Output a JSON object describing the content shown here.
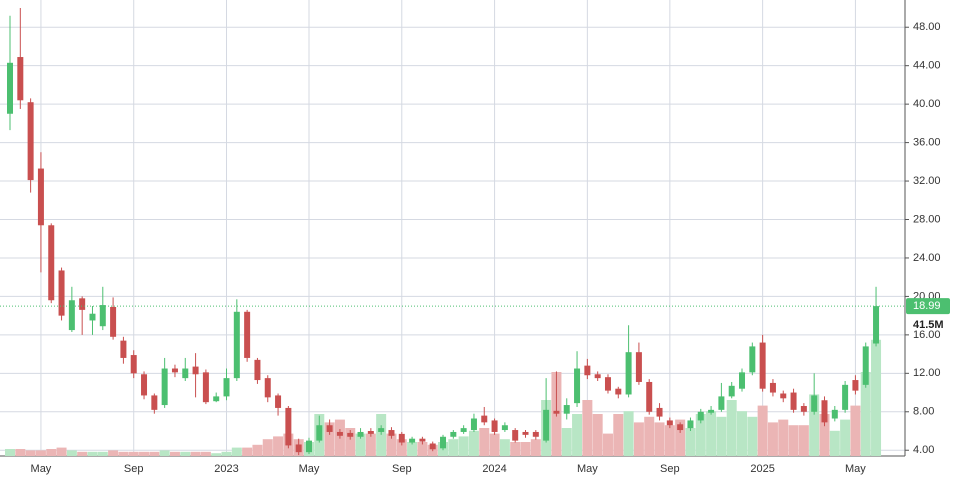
{
  "chart_data": {
    "type": "candlestick",
    "categories": [
      null,
      null,
      null,
      "May",
      null,
      null,
      null,
      null,
      null,
      null,
      null,
      null,
      "Sep",
      null,
      null,
      null,
      null,
      null,
      null,
      null,
      null,
      "2023",
      null,
      null,
      null,
      null,
      null,
      null,
      null,
      "May",
      null,
      null,
      null,
      null,
      null,
      null,
      null,
      null,
      "Sep",
      null,
      null,
      null,
      null,
      null,
      null,
      null,
      null,
      "2024",
      null,
      null,
      null,
      null,
      null,
      null,
      null,
      null,
      "May",
      null,
      null,
      null,
      null,
      null,
      null,
      null,
      "Sep",
      null,
      null,
      null,
      null,
      null,
      null,
      null,
      null,
      "2025",
      null,
      null,
      null,
      null,
      null,
      null,
      null,
      null,
      "May",
      null,
      null
    ],
    "open": [
      39,
      44.9,
      40.2,
      33.3,
      27.4,
      22.7,
      16.5,
      19.8,
      17.5,
      16.9,
      18.9,
      15.4,
      13.9,
      11.9,
      9.7,
      8.7,
      12.5,
      11.5,
      12.7,
      12.1,
      9.1,
      9.6,
      11.5,
      18.4,
      13.4,
      11.5,
      9.7,
      8.4,
      4.6,
      3.8,
      5.0,
      6.6,
      5.9,
      5.8,
      5.4,
      6.0,
      5.9,
      6.1,
      5.7,
      4.8,
      5.2,
      4.7,
      4.2,
      5.4,
      5.9,
      6.1,
      7.6,
      7.1,
      6.1,
      6.1,
      5.9,
      5.9,
      5.0,
      8.1,
      7.8,
      8.9,
      12.8,
      11.9,
      11.6,
      10.4,
      9.8,
      14.2,
      11.1,
      8.4,
      7.1,
      6.7,
      6.3,
      7.1,
      7.9,
      8.2,
      9.6,
      10.4,
      12.1,
      15.2,
      11.0,
      9.9,
      10.0,
      8.6,
      8.0,
      9.2,
      7.3,
      8.2,
      11.3,
      10.8,
      15.1
    ],
    "high": [
      49.2,
      50,
      40.6,
      35,
      27.6,
      23,
      21,
      20,
      19,
      21,
      19.9,
      15.8,
      14.4,
      12.2,
      9.9,
      13.6,
      12.9,
      13.6,
      14.1,
      12.4,
      10,
      12.5,
      19.7,
      18.6,
      13.6,
      11.8,
      9.9,
      8.6,
      5.2,
      5.3,
      7.6,
      7.2,
      6.2,
      6.1,
      6.3,
      6.3,
      6.6,
      6.4,
      5.9,
      5.4,
      5.4,
      4.9,
      5.6,
      6.1,
      6.6,
      7.8,
      8.5,
      7.3,
      6.9,
      6.3,
      6.1,
      6.1,
      11.5,
      12.2,
      9.4,
      14.3,
      13.5,
      12.2,
      11.9,
      10.6,
      17,
      15.2,
      11.4,
      8.9,
      7.4,
      6.9,
      7.4,
      8.3,
      8.6,
      11,
      11.1,
      12.5,
      15.2,
      16,
      11.4,
      10.2,
      10.4,
      8.9,
      12,
      9.6,
      8.6,
      11.2,
      11.8,
      15.2,
      21
    ],
    "low": [
      37.3,
      39.5,
      30.8,
      22.5,
      19.3,
      17.5,
      16.3,
      16,
      16,
      16.5,
      15.5,
      13,
      11.5,
      9.3,
      7.8,
      8.4,
      11.6,
      11.2,
      9.5,
      8.8,
      9,
      9.2,
      11.2,
      13.2,
      10.9,
      9,
      7.6,
      4.2,
      3.5,
      3.6,
      4.8,
      5.6,
      5.2,
      5.1,
      5.2,
      5.4,
      5.6,
      5.2,
      4.5,
      4.6,
      4.6,
      3.9,
      4.0,
      5.2,
      5.7,
      5.9,
      6.6,
      5.6,
      5.9,
      4.8,
      5.3,
      5.1,
      4.8,
      7.5,
      7.2,
      8.5,
      11.4,
      11.2,
      9.9,
      9.4,
      9.5,
      10.8,
      7.7,
      7.1,
      6.3,
      5.8,
      6.0,
      6.8,
      7.7,
      8.0,
      9.4,
      10.1,
      11.8,
      10.1,
      9.6,
      9.0,
      7.9,
      7.6,
      7.7,
      6.5,
      7.0,
      7.9,
      9.8,
      10.5,
      14.8
    ],
    "close": [
      44.3,
      40.4,
      32.1,
      27.4,
      19.6,
      18.0,
      19.6,
      18.6,
      18.2,
      19.1,
      15.8,
      13.6,
      12.0,
      9.7,
      8.2,
      12.5,
      12.1,
      12.5,
      11.9,
      9.0,
      9.6,
      11.5,
      18.4,
      13.6,
      11.3,
      9.5,
      8.4,
      4.5,
      3.8,
      5.0,
      6.6,
      5.9,
      5.5,
      5.4,
      5.9,
      5.7,
      6.3,
      5.5,
      4.8,
      5.2,
      4.9,
      4.1,
      5.4,
      5.9,
      6.3,
      7.3,
      6.9,
      5.9,
      6.6,
      5.0,
      5.6,
      5.4,
      8.2,
      7.8,
      8.7,
      12.5,
      11.8,
      11.5,
      10.2,
      9.8,
      14.2,
      11.1,
      8.0,
      7.5,
      6.6,
      6.1,
      7.1,
      8.0,
      8.2,
      9.6,
      10.7,
      12.1,
      14.8,
      10.4,
      10.0,
      9.4,
      8.2,
      8.0,
      9.7,
      6.9,
      8.2,
      10.8,
      10.2,
      14.8,
      18.99
    ],
    "volume": [
      2.5,
      2.5,
      2,
      2,
      2.5,
      3,
      2,
      1.5,
      1.5,
      1.5,
      2,
      1.5,
      1.5,
      1.5,
      1.5,
      2,
      1.5,
      1.5,
      1.5,
      1.5,
      1,
      1.5,
      3,
      3,
      4,
      6,
      7,
      8,
      6,
      5,
      15,
      12,
      13,
      10,
      8,
      8,
      15,
      8,
      6,
      5,
      5,
      4,
      5,
      6,
      7,
      9,
      10,
      8,
      6,
      5,
      5,
      6,
      20,
      30,
      10,
      15,
      20,
      15,
      8,
      15,
      16,
      12,
      14,
      12,
      11,
      13,
      10,
      15,
      16,
      14,
      20,
      16,
      14,
      18,
      12,
      13,
      11,
      11,
      22,
      15,
      9,
      13,
      18,
      30,
      41.5
    ],
    "last_volume_label": "41.5M",
    "up_color": "#4cbf70",
    "down_color": "#c94f4f",
    "volume_up_color": "#b8e6c5",
    "volume_down_color": "#ebb5b5",
    "ylim": [
      3.4,
      50
    ],
    "yticks": [
      {
        "value": 4,
        "label": "4.00"
      },
      {
        "value": 8,
        "label": "8.00"
      },
      {
        "value": 12,
        "label": "12.00"
      },
      {
        "value": 16,
        "label": "16.00"
      },
      {
        "value": 20,
        "label": "20.00"
      },
      {
        "value": 24,
        "label": "24.00"
      },
      {
        "value": 28,
        "label": "28.00"
      },
      {
        "value": 32,
        "label": "32.00"
      },
      {
        "value": 36,
        "label": "36.00"
      },
      {
        "value": 40,
        "label": "40.00"
      },
      {
        "value": 44,
        "label": "44.00"
      },
      {
        "value": 48,
        "label": "48.00"
      }
    ],
    "volume_ylim": [
      0,
      160
    ],
    "grid": true
  }
}
